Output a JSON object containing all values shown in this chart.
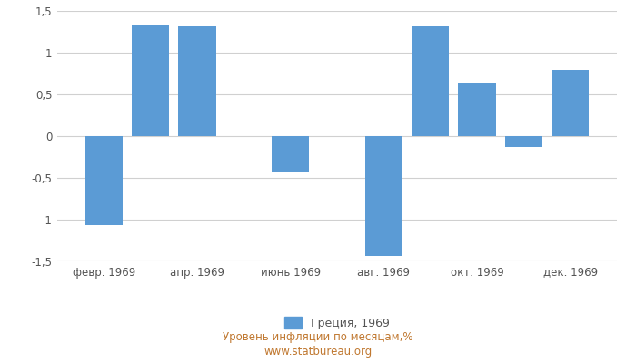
{
  "month_values": {
    "2": -1.07,
    "3": 1.33,
    "4": 1.31,
    "6": -0.42,
    "8": -1.44,
    "9": 1.31,
    "10": 0.64,
    "11": -0.13,
    "12": 0.79
  },
  "xtick_positions": [
    2,
    4,
    6,
    8,
    10,
    12
  ],
  "xtick_labels": [
    "февр. 1969",
    "апр. 1969",
    "июнь 1969",
    "авг. 1969",
    "окт. 1969",
    "дек. 1969"
  ],
  "ytick_vals": [
    -1.5,
    -1.0,
    -0.5,
    0.0,
    0.5,
    1.0,
    1.5
  ],
  "ytick_labels": [
    "-1,5",
    "-1",
    "-0,5",
    "0",
    "0,5",
    "1",
    "1,5"
  ],
  "bar_color": "#5B9BD5",
  "ylim": [
    -1.5,
    1.5
  ],
  "xlim": [
    1,
    13
  ],
  "bar_width": 0.8,
  "legend_label": "Греция, 1969",
  "subtitle": "Уровень инфляции по месяцам,%",
  "watermark": "www.statbureau.org",
  "background_color": "#ffffff",
  "grid_color": "#d0d0d0",
  "tick_label_color": "#555555",
  "text_color": "#c07830",
  "legend_text_color": "#555555",
  "tick_fontsize": 8.5,
  "legend_fontsize": 9,
  "subtitle_fontsize": 8.5
}
